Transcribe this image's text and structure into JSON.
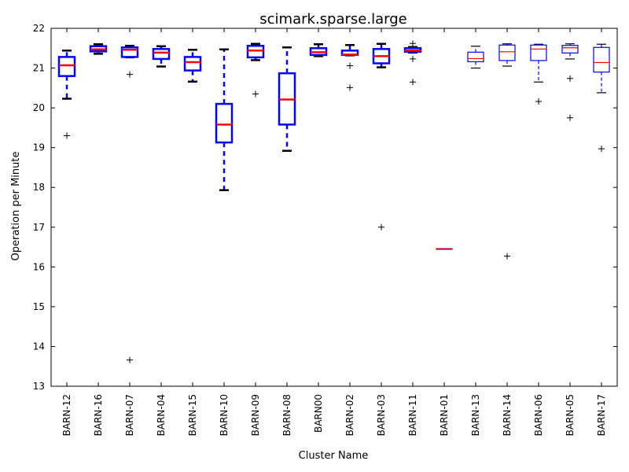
{
  "chart_data": {
    "type": "box",
    "title": "scimark.sparse.large",
    "xlabel": "Cluster Name",
    "ylabel": "Operation per Minute",
    "ylim": [
      13,
      22
    ],
    "yticks": [
      "13",
      "14",
      "15",
      "16",
      "17",
      "18",
      "19",
      "20",
      "21",
      "22"
    ],
    "grid": false,
    "colors": {
      "box": "#0000ff",
      "median": "#ff0000",
      "outlier": "#000000",
      "cap": "#000000"
    },
    "categories": [
      "BARN-12",
      "BARN-16",
      "BARN-07",
      "BARN-04",
      "BARN-15",
      "BARN-10",
      "BARN-09",
      "BARN-08",
      "BARN00",
      "BARN-02",
      "BARN-03",
      "BARN-11",
      "BARN-01",
      "BARN-13",
      "BARN-14",
      "BARN-06",
      "BARN-05",
      "BARN-17"
    ],
    "boxes": [
      {
        "whislo": 20.23,
        "q1": 20.8,
        "med": 21.07,
        "q3": 21.28,
        "whishi": 21.44,
        "fliers": [
          19.3
        ],
        "bold": true
      },
      {
        "whislo": 21.36,
        "q1": 21.42,
        "med": 21.47,
        "q3": 21.55,
        "whishi": 21.6,
        "fliers": [],
        "bold": true
      },
      {
        "whislo": 21.27,
        "q1": 21.28,
        "med": 21.46,
        "q3": 21.52,
        "whishi": 21.56,
        "fliers": [
          20.84,
          13.66
        ],
        "bold": true
      },
      {
        "whislo": 21.04,
        "q1": 21.23,
        "med": 21.39,
        "q3": 21.48,
        "whishi": 21.55,
        "fliers": [],
        "bold": true
      },
      {
        "whislo": 20.66,
        "q1": 20.94,
        "med": 21.15,
        "q3": 21.28,
        "whishi": 21.46,
        "fliers": [],
        "bold": true
      },
      {
        "whislo": 17.93,
        "q1": 19.13,
        "med": 19.58,
        "q3": 20.1,
        "whishi": 21.47,
        "fliers": [],
        "bold": true
      },
      {
        "whislo": 21.2,
        "q1": 21.27,
        "med": 21.44,
        "q3": 21.56,
        "whishi": 21.61,
        "fliers": [
          20.35
        ],
        "bold": true
      },
      {
        "whislo": 18.92,
        "q1": 19.58,
        "med": 20.21,
        "q3": 20.87,
        "whishi": 21.52,
        "fliers": [],
        "bold": true
      },
      {
        "whislo": 21.3,
        "q1": 21.33,
        "med": 21.4,
        "q3": 21.5,
        "whishi": 21.6,
        "fliers": [],
        "bold": true
      },
      {
        "whislo": 21.32,
        "q1": 21.33,
        "med": 21.34,
        "q3": 21.44,
        "whishi": 21.58,
        "fliers": [
          21.06,
          20.51
        ],
        "bold": true
      },
      {
        "whislo": 21.02,
        "q1": 21.12,
        "med": 21.3,
        "q3": 21.48,
        "whishi": 21.61,
        "fliers": [
          17.0
        ],
        "bold": true
      },
      {
        "whislo": 21.39,
        "q1": 21.41,
        "med": 21.44,
        "q3": 21.5,
        "whishi": 21.53,
        "fliers": [
          21.62,
          21.23,
          20.65
        ],
        "bold": true
      },
      {
        "whislo": 16.46,
        "q1": 16.46,
        "med": 16.46,
        "q3": 16.46,
        "whishi": 16.46,
        "fliers": [],
        "bold": false
      },
      {
        "whislo": 21.0,
        "q1": 21.16,
        "med": 21.24,
        "q3": 21.4,
        "whishi": 21.55,
        "fliers": [],
        "bold": false
      },
      {
        "whislo": 21.05,
        "q1": 21.19,
        "med": 21.41,
        "q3": 21.58,
        "whishi": 21.61,
        "fliers": [
          16.27
        ],
        "bold": false
      },
      {
        "whislo": 20.65,
        "q1": 21.19,
        "med": 21.48,
        "q3": 21.58,
        "whishi": 21.6,
        "fliers": [
          20.16
        ],
        "bold": false
      },
      {
        "whislo": 21.23,
        "q1": 21.38,
        "med": 21.51,
        "q3": 21.57,
        "whishi": 21.61,
        "fliers": [
          20.74,
          19.75
        ],
        "bold": false
      },
      {
        "whislo": 20.38,
        "q1": 20.9,
        "med": 21.14,
        "q3": 21.52,
        "whishi": 21.6,
        "fliers": [
          18.97
        ],
        "bold": false
      }
    ]
  }
}
